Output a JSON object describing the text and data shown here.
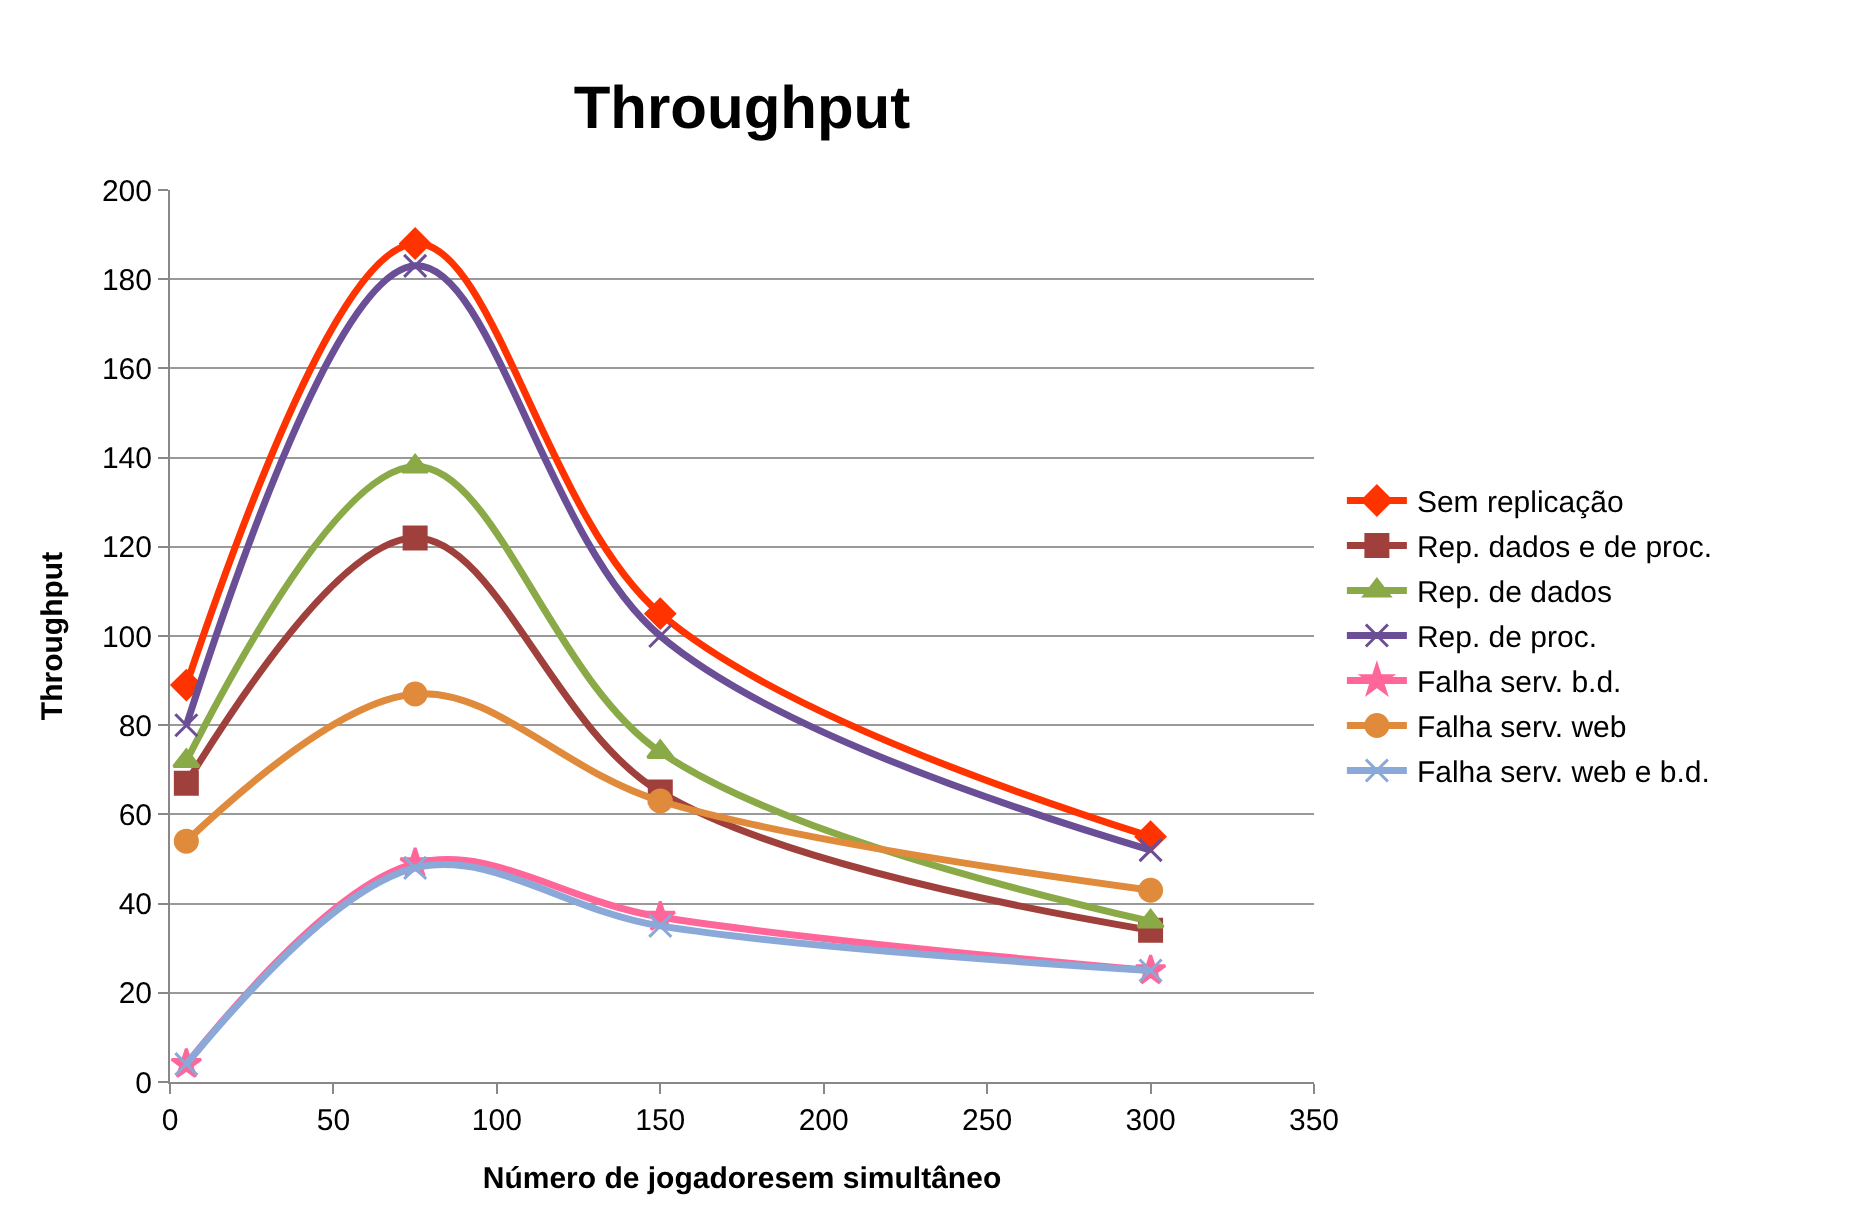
{
  "chart_data": {
    "type": "line",
    "title": "Throughput",
    "xlabel": "Número de jogadoresem simultâneo",
    "ylabel": "Throughput",
    "x": [
      5,
      75,
      150,
      300
    ],
    "xlim": [
      0,
      350
    ],
    "xticks": [
      0,
      50,
      100,
      150,
      200,
      250,
      300,
      350
    ],
    "ylim": [
      0,
      200
    ],
    "yticks": [
      0,
      20,
      40,
      60,
      80,
      100,
      120,
      140,
      160,
      180,
      200
    ],
    "grid": "y",
    "legend": "right",
    "series": [
      {
        "name": "Sem replicação",
        "color": "#ff3300",
        "marker": "diamond",
        "values": [
          89,
          188,
          105,
          55
        ]
      },
      {
        "name": "Rep. dados e de proc.",
        "color": "#a0403c",
        "marker": "square",
        "values": [
          67,
          122,
          65,
          34
        ]
      },
      {
        "name": "Rep. de dados",
        "color": "#8aaa48",
        "marker": "triangle",
        "values": [
          72,
          138,
          74,
          36
        ]
      },
      {
        "name": "Rep. de proc.",
        "color": "#6a4f96",
        "marker": "cross",
        "values": [
          80,
          183,
          100,
          52
        ]
      },
      {
        "name": "Falha serv. b.d.",
        "color": "#ff6699",
        "marker": "star",
        "values": [
          4,
          49,
          37,
          25
        ]
      },
      {
        "name": "Falha serv. web",
        "color": "#e08a3c",
        "marker": "circle",
        "values": [
          54,
          87,
          63,
          43
        ]
      },
      {
        "name": "Falha serv. web e b.d.",
        "color": "#8aa8d8",
        "marker": "cross",
        "values": [
          4,
          48,
          35,
          25
        ]
      }
    ]
  }
}
